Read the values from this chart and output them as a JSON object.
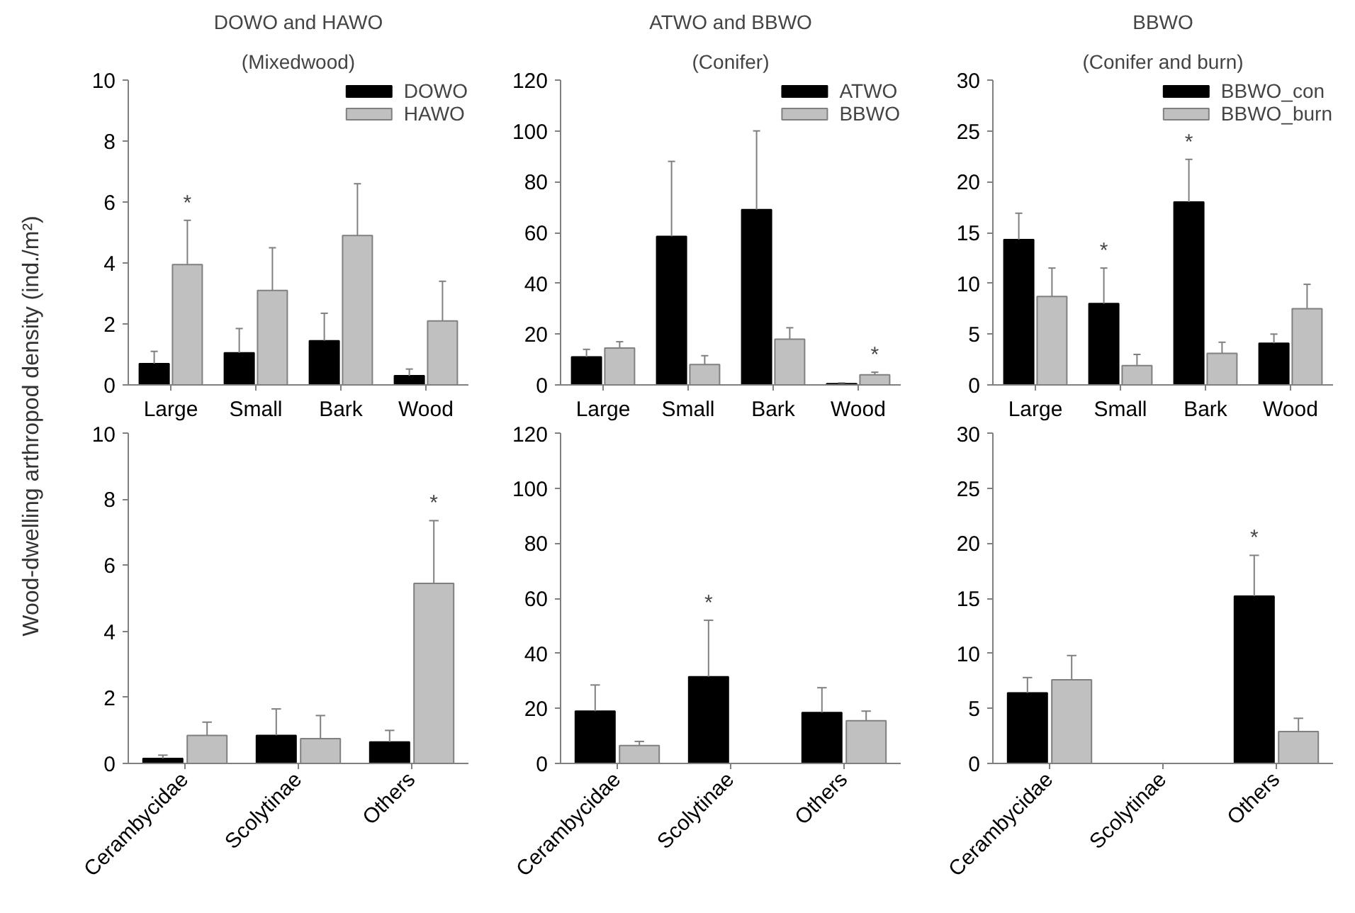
{
  "chart_data": [
    {
      "type": "bar",
      "title": "DOWO and HAWO",
      "subtitle": "(Mixedwood)",
      "ylabel": "Wood-dwelling arthropod density (ind./m²)",
      "categories": [
        "Large",
        "Small",
        "Bark",
        "Wood"
      ],
      "ylim": [
        0,
        10
      ],
      "yticks": [
        0,
        2,
        4,
        6,
        8,
        10
      ],
      "grid": false,
      "legend": "top right",
      "series": [
        {
          "name": "DOWO",
          "color": "#000000",
          "values": [
            0.7,
            1.05,
            1.45,
            0.3
          ],
          "errors": [
            [
              0.7,
              1.1
            ],
            [
              1.05,
              1.85
            ],
            [
              1.45,
              2.35
            ],
            [
              0.3,
              0.52
            ]
          ]
        },
        {
          "name": "HAWO",
          "color": "#c0c0c0",
          "values": [
            3.95,
            3.1,
            4.9,
            2.1
          ],
          "errors": [
            [
              3.95,
              5.4
            ],
            [
              3.1,
              4.5
            ],
            [
              4.9,
              6.6
            ],
            [
              2.1,
              3.4
            ]
          ],
          "value_labels": [
            "*",
            null,
            null,
            null
          ]
        }
      ]
    },
    {
      "type": "bar",
      "title": "ATWO and BBWO",
      "subtitle": "(Conifer)",
      "categories": [
        "Large",
        "Small",
        "Bark",
        "Wood"
      ],
      "ylim": [
        0,
        120
      ],
      "yticks": [
        0,
        20,
        40,
        60,
        80,
        100,
        120
      ],
      "grid": false,
      "legend": "top right",
      "series": [
        {
          "name": "ATWO",
          "color": "#000000",
          "values": [
            11,
            58.5,
            69,
            0.5
          ],
          "errors": [
            [
              11,
              14
            ],
            [
              58.5,
              88
            ],
            [
              69,
              100
            ],
            [
              0.5,
              0.8
            ]
          ]
        },
        {
          "name": "BBWO",
          "color": "#c0c0c0",
          "values": [
            14.5,
            8,
            18,
            4
          ],
          "errors": [
            [
              14.5,
              17
            ],
            [
              8,
              11.5
            ],
            [
              18,
              22.5
            ],
            [
              4,
              5
            ]
          ],
          "value_labels": [
            null,
            null,
            null,
            "*"
          ]
        }
      ]
    },
    {
      "type": "bar",
      "title": "BBWO",
      "subtitle": "(Conifer and burn)",
      "categories": [
        "Large",
        "Small",
        "Bark",
        "Wood"
      ],
      "ylim": [
        0,
        30
      ],
      "yticks": [
        0,
        5,
        10,
        15,
        20,
        25,
        30
      ],
      "grid": false,
      "legend": "top right",
      "series": [
        {
          "name": "BBWO_con",
          "color": "#000000",
          "values": [
            14.3,
            8,
            18,
            4.1
          ],
          "errors": [
            [
              14.3,
              16.9
            ],
            [
              8,
              11.5
            ],
            [
              18,
              22.2
            ],
            [
              4.1,
              5
            ]
          ],
          "value_labels": [
            null,
            "*",
            "*",
            null
          ]
        },
        {
          "name": "BBWO_burn",
          "color": "#c0c0c0",
          "values": [
            8.7,
            1.9,
            3.1,
            7.5
          ],
          "errors": [
            [
              8.7,
              11.5
            ],
            [
              1.9,
              3
            ],
            [
              3.1,
              4.2
            ],
            [
              7.5,
              9.9
            ]
          ]
        }
      ]
    },
    {
      "type": "bar",
      "categories": [
        "Cerambycidae",
        "Scolytinae",
        "Others"
      ],
      "ylim": [
        0,
        10
      ],
      "yticks": [
        0,
        2,
        4,
        6,
        8,
        10
      ],
      "grid": false,
      "series": [
        {
          "color": "#000000",
          "values": [
            0.15,
            0.85,
            0.65
          ],
          "errors": [
            [
              0.15,
              0.25
            ],
            [
              0.85,
              1.65
            ],
            [
              0.65,
              1.0
            ]
          ]
        },
        {
          "color": "#c0c0c0",
          "values": [
            0.85,
            0.75,
            5.45
          ],
          "errors": [
            [
              0.85,
              1.25
            ],
            [
              0.75,
              1.45
            ],
            [
              5.45,
              7.35
            ]
          ],
          "value_labels": [
            null,
            null,
            "*"
          ]
        }
      ]
    },
    {
      "type": "bar",
      "categories": [
        "Cerambycidae",
        "Scolytinae",
        "Others"
      ],
      "ylim": [
        0,
        120
      ],
      "yticks": [
        0,
        20,
        40,
        60,
        80,
        100,
        120
      ],
      "grid": false,
      "series": [
        {
          "color": "#000000",
          "values": [
            19,
            31.5,
            18.5
          ],
          "errors": [
            [
              19,
              28.5
            ],
            [
              31.5,
              52
            ],
            [
              18.5,
              27.5
            ]
          ],
          "value_labels": [
            null,
            "*",
            null
          ]
        },
        {
          "color": "#c0c0c0",
          "values": [
            6.5,
            0,
            15.5
          ],
          "errors": [
            [
              6.5,
              8
            ],
            null,
            [
              15.5,
              19
            ]
          ]
        }
      ]
    },
    {
      "type": "bar",
      "categories": [
        "Cerambycidae",
        "Scolytinae",
        "Others"
      ],
      "ylim": [
        0,
        30
      ],
      "yticks": [
        0,
        5,
        10,
        15,
        20,
        25,
        30
      ],
      "grid": false,
      "series": [
        {
          "color": "#000000",
          "values": [
            6.4,
            0,
            15.2
          ],
          "errors": [
            [
              6.4,
              7.8
            ],
            null,
            [
              15.2,
              18.9
            ]
          ],
          "value_labels": [
            null,
            null,
            "*"
          ]
        },
        {
          "color": "#c0c0c0",
          "values": [
            7.6,
            0,
            2.9
          ],
          "errors": [
            [
              7.6,
              9.8
            ],
            null,
            [
              2.9,
              4.1
            ]
          ]
        }
      ]
    }
  ]
}
